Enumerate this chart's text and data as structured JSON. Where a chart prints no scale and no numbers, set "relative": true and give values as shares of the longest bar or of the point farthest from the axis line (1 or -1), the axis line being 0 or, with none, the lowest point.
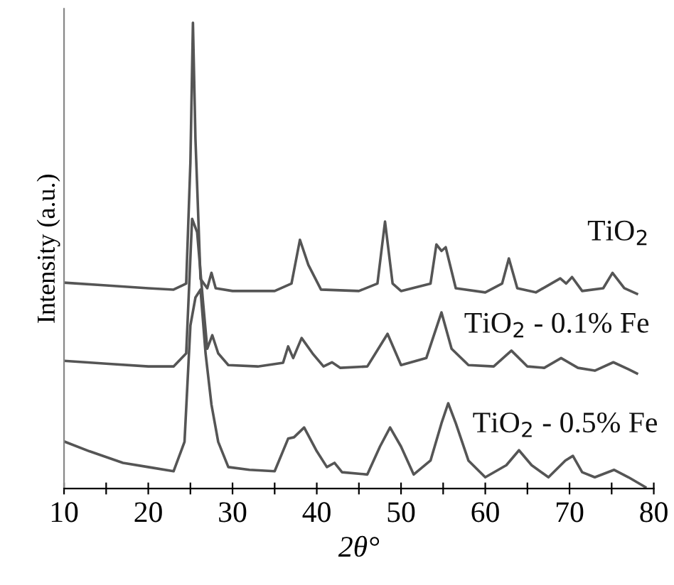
{
  "chart_data": {
    "type": "line",
    "relative": true,
    "xlabel": "2θ°",
    "ylabel": "Intensity (a.u.)",
    "xlim": [
      10,
      80
    ],
    "xticks": [
      10,
      {
        "value": 15,
        "label": null
      },
      20,
      {
        "value": 25,
        "label": null
      },
      30,
      {
        "value": 35,
        "label": null
      },
      40,
      {
        "value": 45,
        "label": null
      },
      50,
      {
        "value": 55,
        "label": null
      },
      60,
      {
        "value": 65,
        "label": null
      },
      70,
      {
        "value": 75,
        "label": null
      },
      80
    ],
    "grid": false,
    "legend": false,
    "marker": "none",
    "line_style": "solid",
    "series": [
      {
        "name": "TiO$_{2}$",
        "color": "#555555",
        "x": [
          10,
          15,
          20,
          23,
          24.5,
          25.0,
          25.3,
          25.6,
          26.2,
          27,
          27.5,
          28,
          30,
          35,
          37,
          38.0,
          39,
          40.5,
          45,
          47.2,
          48.1,
          49,
          50,
          53.5,
          54.2,
          54.8,
          55.3,
          56.5,
          60,
          62.0,
          62.8,
          63.8,
          66,
          68.9,
          69.6,
          70.3,
          71.5,
          74,
          75.1,
          76.5,
          78
        ],
        "values": [
          0.442,
          0.436,
          0.43,
          0.427,
          0.44,
          0.7,
          1.0,
          0.75,
          0.45,
          0.43,
          0.463,
          0.43,
          0.424,
          0.424,
          0.44,
          0.534,
          0.48,
          0.427,
          0.424,
          0.44,
          0.573,
          0.44,
          0.424,
          0.44,
          0.524,
          0.51,
          0.518,
          0.43,
          0.421,
          0.44,
          0.494,
          0.43,
          0.421,
          0.451,
          0.44,
          0.454,
          0.424,
          0.43,
          0.463,
          0.43,
          0.418
        ]
      },
      {
        "name": "TiO$_{2}$ - 0.1% Fe",
        "color": "#555555",
        "x": [
          10,
          15,
          20,
          23,
          24.5,
          25.2,
          25.8,
          26.5,
          27,
          27.6,
          28.3,
          29.5,
          33,
          36,
          36.6,
          37.2,
          38.2,
          39.5,
          40.8,
          41.8,
          42.8,
          46,
          48.4,
          50,
          53,
          54.8,
          56,
          58,
          61,
          63.1,
          65,
          67,
          69.0,
          71,
          73,
          75.2,
          77,
          78
        ],
        "values": [
          0.274,
          0.268,
          0.262,
          0.262,
          0.29,
          0.579,
          0.55,
          0.4,
          0.3,
          0.329,
          0.29,
          0.265,
          0.262,
          0.27,
          0.305,
          0.28,
          0.323,
          0.29,
          0.262,
          0.271,
          0.259,
          0.262,
          0.332,
          0.265,
          0.28,
          0.378,
          0.3,
          0.265,
          0.262,
          0.296,
          0.262,
          0.259,
          0.28,
          0.259,
          0.253,
          0.271,
          0.256,
          0.247
        ]
      },
      {
        "name": "TiO$_{2}$ - 0.5% Fe",
        "color": "#555555",
        "x": [
          10,
          13,
          17,
          20,
          23,
          24.3,
          25.0,
          25.6,
          26.2,
          26.8,
          27.5,
          28.3,
          29.5,
          32,
          35,
          36.6,
          37.3,
          38.5,
          40,
          41.2,
          42.1,
          43,
          46,
          47.5,
          48.7,
          50,
          51.5,
          53.5,
          54.8,
          55.6,
          56.5,
          58,
          60,
          62.5,
          64.0,
          65.5,
          67.5,
          69.5,
          70.4,
          71.5,
          73,
          75.3,
          77,
          79
        ],
        "values": [
          0.101,
          0.08,
          0.055,
          0.046,
          0.037,
          0.1,
          0.35,
          0.41,
          0.427,
          0.29,
          0.18,
          0.1,
          0.046,
          0.04,
          0.037,
          0.107,
          0.11,
          0.131,
          0.08,
          0.046,
          0.055,
          0.035,
          0.03,
          0.09,
          0.131,
          0.09,
          0.03,
          0.06,
          0.14,
          0.183,
          0.14,
          0.06,
          0.024,
          0.05,
          0.082,
          0.05,
          0.024,
          0.06,
          0.07,
          0.035,
          0.024,
          0.04,
          0.024,
          0.003
        ]
      }
    ]
  }
}
